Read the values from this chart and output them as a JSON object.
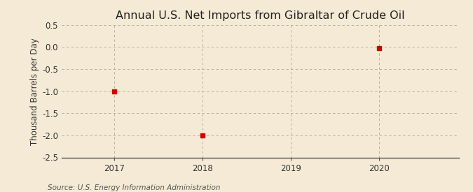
{
  "title": "Annual U.S. Net Imports from Gibraltar of Crude Oil",
  "ylabel": "Thousand Barrels per Day",
  "source_text": "Source: U.S. Energy Information Administration",
  "x_values": [
    2017,
    2018,
    2019,
    2020
  ],
  "y_values": [
    -1.0,
    -2.0,
    null,
    -0.02
  ],
  "xlim": [
    2016.4,
    2020.9
  ],
  "ylim": [
    -2.5,
    0.5
  ],
  "yticks": [
    0.5,
    0.0,
    -0.5,
    -1.0,
    -1.5,
    -2.0,
    -2.5
  ],
  "xticks": [
    2017,
    2018,
    2019,
    2020
  ],
  "marker_color": "#cc0000",
  "marker_size": 4,
  "background_color": "#f5ead5",
  "grid_color": "#b0a898",
  "title_fontsize": 11.5,
  "label_fontsize": 8.5,
  "tick_fontsize": 8.5,
  "source_fontsize": 7.5
}
